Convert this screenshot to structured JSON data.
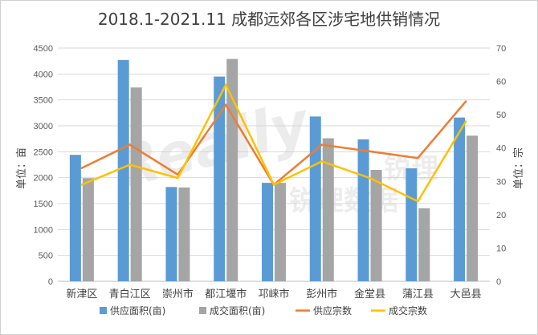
{
  "chart_data": {
    "type": "bar+line",
    "title": "2018.1-2021.11 成都远郊各区涉宅地供销情况",
    "categories": [
      "新津区",
      "青白江区",
      "崇州市",
      "都江堰市",
      "邛崃市",
      "彭州市",
      "金堂县",
      "蒲江县",
      "大邑县"
    ],
    "y_left": {
      "label": "单位：亩",
      "min": 0,
      "max": 4500,
      "step": 500
    },
    "y_right": {
      "label": "单位：宗",
      "min": 0,
      "max": 70,
      "step": 10
    },
    "series": [
      {
        "name": "供应面积(亩)",
        "type": "bar",
        "axis": "left",
        "color": "#5b9bd5",
        "values": [
          2440,
          4270,
          1820,
          3950,
          1900,
          3180,
          2740,
          2180,
          3160
        ]
      },
      {
        "name": "成交面积(亩)",
        "type": "bar",
        "axis": "left",
        "color": "#a5a5a5",
        "values": [
          1990,
          3740,
          1810,
          4290,
          1900,
          2760,
          2150,
          1410,
          2810
        ]
      },
      {
        "name": "供应宗数",
        "type": "line",
        "axis": "right",
        "color": "#ed7d31",
        "values": [
          34,
          41,
          32,
          53,
          29,
          41,
          39,
          37,
          54
        ]
      },
      {
        "name": "成交宗数",
        "type": "line",
        "axis": "right",
        "color": "#ffc000",
        "values": [
          29,
          35,
          31,
          59,
          29,
          36,
          31,
          24,
          48
        ]
      }
    ],
    "grid": true,
    "legend_position": "bottom"
  },
  "watermark": {
    "text_main": "Really",
    "text_sub": "锐理数据",
    "text_partial": "锐理"
  }
}
